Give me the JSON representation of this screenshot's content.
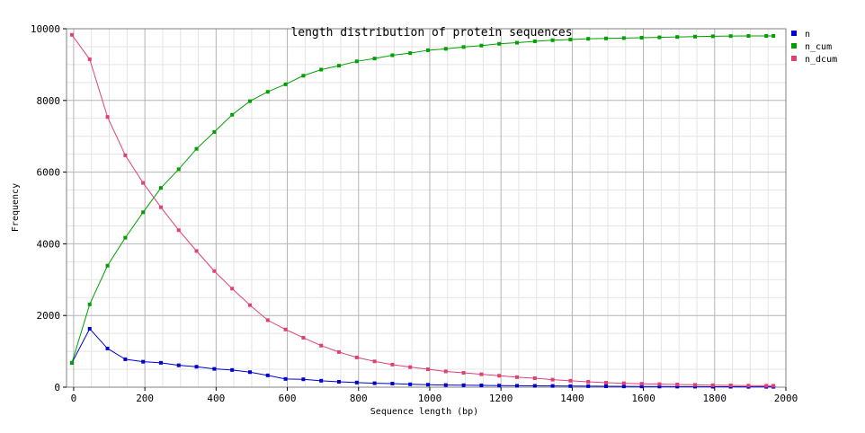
{
  "chart_data": {
    "type": "line",
    "title": "length distribution of protein sequences",
    "xlabel": "Sequence length (bp)",
    "ylabel": "Frequency",
    "xlim": [
      -20,
      2000
    ],
    "ylim": [
      0,
      10000
    ],
    "xticks": [
      "0",
      "200",
      "400",
      "600",
      "800",
      "1000",
      "1200",
      "1400",
      "1600",
      "1800",
      "2000"
    ],
    "yticks": [
      "0",
      "2000",
      "4000",
      "6000",
      "8000",
      "10000"
    ],
    "grid": true,
    "legend_position": "right",
    "x": [
      -5,
      45,
      95,
      145,
      195,
      245,
      295,
      345,
      395,
      445,
      495,
      545,
      595,
      645,
      695,
      745,
      795,
      845,
      895,
      945,
      995,
      1045,
      1095,
      1145,
      1195,
      1245,
      1295,
      1345,
      1395,
      1445,
      1495,
      1545,
      1595,
      1645,
      1695,
      1745,
      1795,
      1845,
      1895,
      1945,
      1965
    ],
    "series": [
      {
        "name": "n",
        "color": "#0000cc",
        "values": [
          680,
          1630,
          1080,
          780,
          710,
          680,
          610,
          570,
          510,
          480,
          420,
          330,
          230,
          220,
          180,
          150,
          130,
          110,
          100,
          80,
          70,
          60,
          55,
          50,
          45,
          40,
          38,
          35,
          30,
          28,
          25,
          22,
          20,
          18,
          16,
          15,
          14,
          12,
          10,
          10,
          10
        ]
      },
      {
        "name": "n_cum",
        "color": "#00a000",
        "values": [
          680,
          2310,
          3390,
          4170,
          4880,
          5560,
          6080,
          6650,
          7120,
          7600,
          7980,
          8240,
          8450,
          8690,
          8860,
          8970,
          9090,
          9170,
          9260,
          9320,
          9400,
          9440,
          9490,
          9530,
          9580,
          9610,
          9650,
          9680,
          9700,
          9720,
          9730,
          9740,
          9750,
          9760,
          9770,
          9780,
          9790,
          9795,
          9800,
          9800,
          9800
        ]
      },
      {
        "name": "n_dcum",
        "color": "#e0407a",
        "values": [
          9830,
          9150,
          7540,
          6470,
          5700,
          5020,
          4380,
          3800,
          3240,
          2750,
          2290,
          1870,
          1610,
          1380,
          1160,
          980,
          830,
          720,
          630,
          560,
          500,
          440,
          400,
          360,
          320,
          280,
          250,
          210,
          180,
          150,
          125,
          110,
          95,
          85,
          75,
          65,
          55,
          50,
          45,
          40,
          40
        ]
      }
    ]
  }
}
